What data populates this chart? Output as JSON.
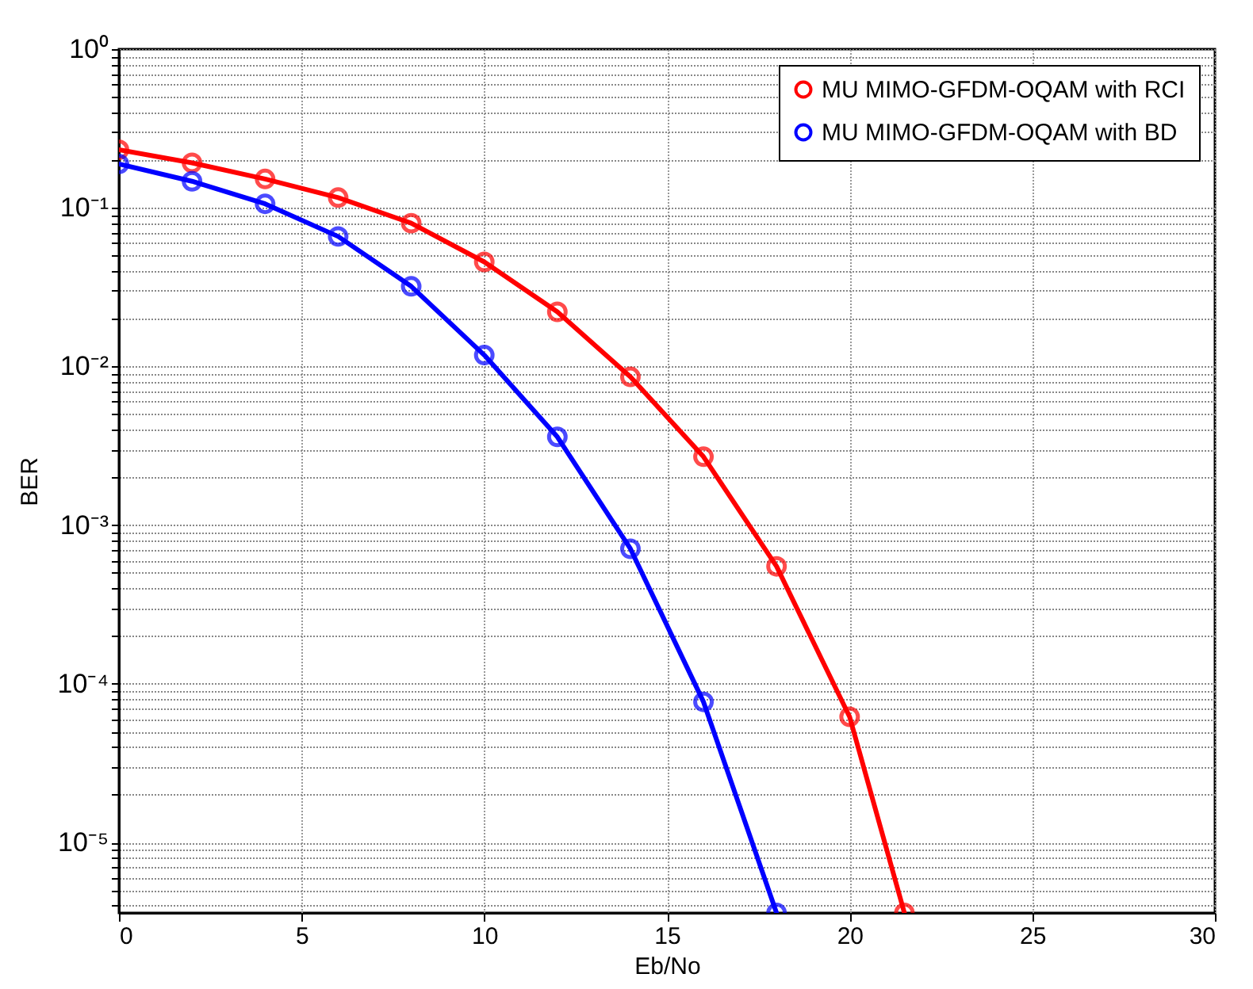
{
  "chart_data": {
    "type": "line",
    "xlabel": "Eb/No",
    "ylabel": "BER",
    "x": [
      0,
      2,
      4,
      6,
      8,
      10,
      12,
      14,
      16,
      18,
      20,
      21.5
    ],
    "series": [
      {
        "name": "MU MIMO-GFDM-OQAM with RCI",
        "color": "#ff0000",
        "values": [
          0.232,
          0.192,
          0.152,
          0.116,
          0.08,
          0.0456,
          0.0221,
          0.0086,
          0.0027,
          0.00055,
          6.2e-05,
          3.6e-06
        ]
      },
      {
        "name": "MU MIMO-GFDM-OQAM with BD",
        "color": "#0000ff",
        "x": [
          0,
          2,
          4,
          6,
          8,
          10,
          12,
          14,
          16,
          18
        ],
        "values": [
          0.189,
          0.147,
          0.106,
          0.066,
          0.032,
          0.0118,
          0.0036,
          0.00071,
          7.7e-05,
          3.6e-06
        ]
      }
    ],
    "log": "y",
    "xlim": [
      0,
      30
    ],
    "xticks": [
      0,
      5,
      10,
      15,
      20,
      25,
      30
    ],
    "ylim": [
      3.6e-06,
      1
    ],
    "yticks": [
      {
        "value": 1,
        "label": "10⁰"
      },
      {
        "value": 0.9,
        "label": null
      },
      {
        "value": 0.8,
        "label": null
      },
      {
        "value": 0.7,
        "label": null
      },
      {
        "value": 0.6,
        "label": null
      },
      {
        "value": 0.5,
        "label": null
      },
      {
        "value": 0.4,
        "label": null
      },
      {
        "value": 0.3,
        "label": null
      },
      {
        "value": 0.2,
        "label": null
      },
      {
        "value": 0.1,
        "label": "10⁻¹"
      },
      {
        "value": 0.09,
        "label": null
      },
      {
        "value": 0.08,
        "label": null
      },
      {
        "value": 0.07,
        "label": null
      },
      {
        "value": 0.06,
        "label": null
      },
      {
        "value": 0.05,
        "label": null
      },
      {
        "value": 0.04,
        "label": null
      },
      {
        "value": 0.03,
        "label": null
      },
      {
        "value": 0.02,
        "label": null
      },
      {
        "value": 0.01,
        "label": "10⁻²"
      },
      {
        "value": 0.009,
        "label": null
      },
      {
        "value": 0.008,
        "label": null
      },
      {
        "value": 0.007,
        "label": null
      },
      {
        "value": 0.006,
        "label": null
      },
      {
        "value": 0.005,
        "label": null
      },
      {
        "value": 0.004,
        "label": null
      },
      {
        "value": 0.003,
        "label": null
      },
      {
        "value": 0.002,
        "label": null
      },
      {
        "value": 0.001,
        "label": "10⁻³"
      },
      {
        "value": 0.0009,
        "label": null
      },
      {
        "value": 0.0008,
        "label": null
      },
      {
        "value": 0.0007,
        "label": null
      },
      {
        "value": 0.0006,
        "label": null
      },
      {
        "value": 0.0005,
        "label": null
      },
      {
        "value": 0.0004,
        "label": null
      },
      {
        "value": 0.0003,
        "label": null
      },
      {
        "value": 0.0002,
        "label": null
      },
      {
        "value": 0.0001,
        "label": "10⁻⁴"
      },
      {
        "value": 9e-05,
        "label": null
      },
      {
        "value": 8e-05,
        "label": null
      },
      {
        "value": 7e-05,
        "label": null
      },
      {
        "value": 6e-05,
        "label": null
      },
      {
        "value": 5e-05,
        "label": null
      },
      {
        "value": 4e-05,
        "label": null
      },
      {
        "value": 3e-05,
        "label": null
      },
      {
        "value": 2e-05,
        "label": null
      },
      {
        "value": 1e-05,
        "label": "10⁻⁵"
      },
      {
        "value": 9e-06,
        "label": null
      },
      {
        "value": 8e-06,
        "label": null
      },
      {
        "value": 7e-06,
        "label": null
      },
      {
        "value": 6e-06,
        "label": null
      },
      {
        "value": 5e-06,
        "label": null
      },
      {
        "value": 4e-06,
        "label": null
      }
    ],
    "grid": true,
    "legend": "top right",
    "marker": "circle",
    "line_style": "solid"
  }
}
